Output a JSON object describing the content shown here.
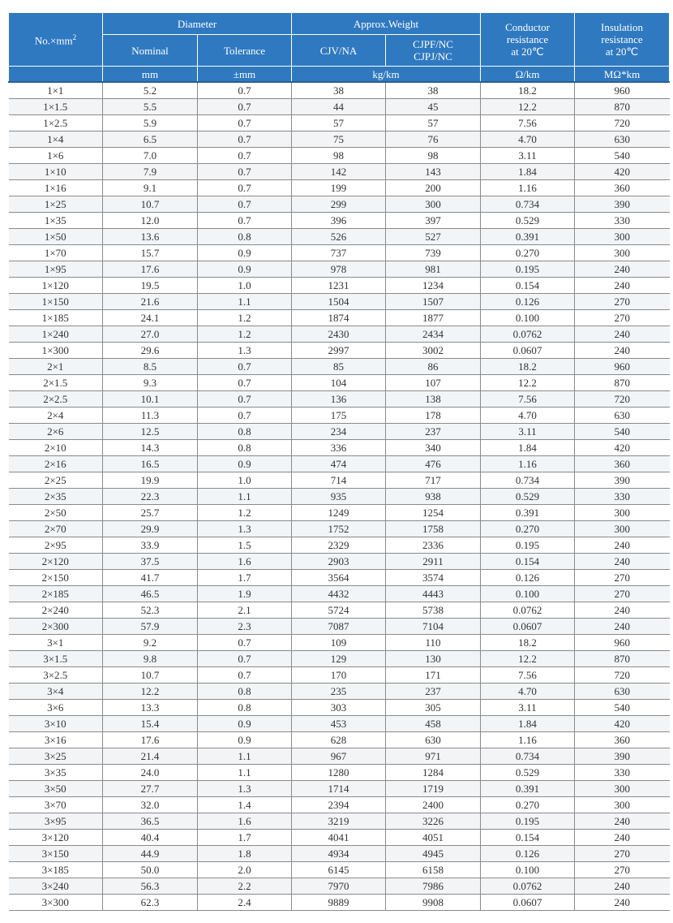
{
  "header": {
    "size": "No.×mm",
    "size_sup": "2",
    "diameter": "Diameter",
    "nominal": "Nominal",
    "tolerance": "Tolerance",
    "weight": "Approx.Weight",
    "cjv": "CJV/NA",
    "cjpf_line1": "CJPF/NC",
    "cjpf_line2": "CJPJ/NC",
    "conductor_line1": "Conductor",
    "conductor_line2": "resistance",
    "conductor_line3": "at 20℃",
    "insulation_line1": "Insulation",
    "insulation_line2": "resistance",
    "insulation_line3": "at 20℃",
    "unit_mm": "mm",
    "unit_tol": "±mm",
    "unit_weight": "kg/km",
    "unit_ohm": "Ω/km",
    "unit_mohm": "MΩ*km"
  },
  "colors": {
    "header_bg": "#2f79c1",
    "stripe": "#f3f4f6"
  },
  "rows": [
    [
      "1×1",
      "5.2",
      "0.7",
      "38",
      "38",
      "18.2",
      "960"
    ],
    [
      "1×1.5",
      "5.5",
      "0.7",
      "44",
      "45",
      "12.2",
      "870"
    ],
    [
      "1×2.5",
      "5.9",
      "0.7",
      "57",
      "57",
      "7.56",
      "720"
    ],
    [
      "1×4",
      "6.5",
      "0.7",
      "75",
      "76",
      "4.70",
      "630"
    ],
    [
      "1×6",
      "7.0",
      "0.7",
      "98",
      "98",
      "3.11",
      "540"
    ],
    [
      "1×10",
      "7.9",
      "0.7",
      "142",
      "143",
      "1.84",
      "420"
    ],
    [
      "1×16",
      "9.1",
      "0.7",
      "199",
      "200",
      "1.16",
      "360"
    ],
    [
      "1×25",
      "10.7",
      "0.7",
      "299",
      "300",
      "0.734",
      "390"
    ],
    [
      "1×35",
      "12.0",
      "0.7",
      "396",
      "397",
      "0.529",
      "330"
    ],
    [
      "1×50",
      "13.6",
      "0.8",
      "526",
      "527",
      "0.391",
      "300"
    ],
    [
      "1×70",
      "15.7",
      "0.9",
      "737",
      "739",
      "0.270",
      "300"
    ],
    [
      "1×95",
      "17.6",
      "0.9",
      "978",
      "981",
      "0.195",
      "240"
    ],
    [
      "1×120",
      "19.5",
      "1.0",
      "1231",
      "1234",
      "0.154",
      "240"
    ],
    [
      "1×150",
      "21.6",
      "1.1",
      "1504",
      "1507",
      "0.126",
      "270"
    ],
    [
      "1×185",
      "24.1",
      "1.2",
      "1874",
      "1877",
      "0.100",
      "270"
    ],
    [
      "1×240",
      "27.0",
      "1.2",
      "2430",
      "2434",
      "0.0762",
      "240"
    ],
    [
      "1×300",
      "29.6",
      "1.3",
      "2997",
      "3002",
      "0.0607",
      "240"
    ],
    [
      "2×1",
      "8.5",
      "0.7",
      "85",
      "86",
      "18.2",
      "960"
    ],
    [
      "2×1.5",
      "9.3",
      "0.7",
      "104",
      "107",
      "12.2",
      "870"
    ],
    [
      "2×2.5",
      "10.1",
      "0.7",
      "136",
      "138",
      "7.56",
      "720"
    ],
    [
      "2×4",
      "11.3",
      "0.7",
      "175",
      "178",
      "4.70",
      "630"
    ],
    [
      "2×6",
      "12.5",
      "0.8",
      "234",
      "237",
      "3.11",
      "540"
    ],
    [
      "2×10",
      "14.3",
      "0.8",
      "336",
      "340",
      "1.84",
      "420"
    ],
    [
      "2×16",
      "16.5",
      "0.9",
      "474",
      "476",
      "1.16",
      "360"
    ],
    [
      "2×25",
      "19.9",
      "1.0",
      "714",
      "717",
      "0.734",
      "390"
    ],
    [
      "2×35",
      "22.3",
      "1.1",
      "935",
      "938",
      "0.529",
      "330"
    ],
    [
      "2×50",
      "25.7",
      "1.2",
      "1249",
      "1254",
      "0.391",
      "300"
    ],
    [
      "2×70",
      "29.9",
      "1.3",
      "1752",
      "1758",
      "0.270",
      "300"
    ],
    [
      "2×95",
      "33.9",
      "1.5",
      "2329",
      "2336",
      "0.195",
      "240"
    ],
    [
      "2×120",
      "37.5",
      "1.6",
      "2903",
      "2911",
      "0.154",
      "240"
    ],
    [
      "2×150",
      "41.7",
      "1.7",
      "3564",
      "3574",
      "0.126",
      "270"
    ],
    [
      "2×185",
      "46.5",
      "1.9",
      "4432",
      "4443",
      "0.100",
      "270"
    ],
    [
      "2×240",
      "52.3",
      "2.1",
      "5724",
      "5738",
      "0.0762",
      "240"
    ],
    [
      "2×300",
      "57.9",
      "2.3",
      "7087",
      "7104",
      "0.0607",
      "240"
    ],
    [
      "3×1",
      "9.2",
      "0.7",
      "109",
      "110",
      "18.2",
      "960"
    ],
    [
      "3×1.5",
      "9.8",
      "0.7",
      "129",
      "130",
      "12.2",
      "870"
    ],
    [
      "3×2.5",
      "10.7",
      "0.7",
      "170",
      "171",
      "7.56",
      "720"
    ],
    [
      "3×4",
      "12.2",
      "0.8",
      "235",
      "237",
      "4.70",
      "630"
    ],
    [
      "3×6",
      "13.3",
      "0.8",
      "303",
      "305",
      "3.11",
      "540"
    ],
    [
      "3×10",
      "15.4",
      "0.9",
      "453",
      "458",
      "1.84",
      "420"
    ],
    [
      "3×16",
      "17.6",
      "0.9",
      "628",
      "630",
      "1.16",
      "360"
    ],
    [
      "3×25",
      "21.4",
      "1.1",
      "967",
      "971",
      "0.734",
      "390"
    ],
    [
      "3×35",
      "24.0",
      "1.1",
      "1280",
      "1284",
      "0.529",
      "330"
    ],
    [
      "3×50",
      "27.7",
      "1.3",
      "1714",
      "1719",
      "0.391",
      "300"
    ],
    [
      "3×70",
      "32.0",
      "1.4",
      "2394",
      "2400",
      "0.270",
      "300"
    ],
    [
      "3×95",
      "36.5",
      "1.6",
      "3219",
      "3226",
      "0.195",
      "240"
    ],
    [
      "3×120",
      "40.4",
      "1.7",
      "4041",
      "4051",
      "0.154",
      "240"
    ],
    [
      "3×150",
      "44.9",
      "1.8",
      "4934",
      "4945",
      "0.126",
      "270"
    ],
    [
      "3×185",
      "50.0",
      "2.0",
      "6145",
      "6158",
      "0.100",
      "270"
    ],
    [
      "3×240",
      "56.3",
      "2.2",
      "7970",
      "7986",
      "0.0762",
      "240"
    ],
    [
      "3×300",
      "62.3",
      "2.4",
      "9889",
      "9908",
      "0.0607",
      "240"
    ]
  ]
}
